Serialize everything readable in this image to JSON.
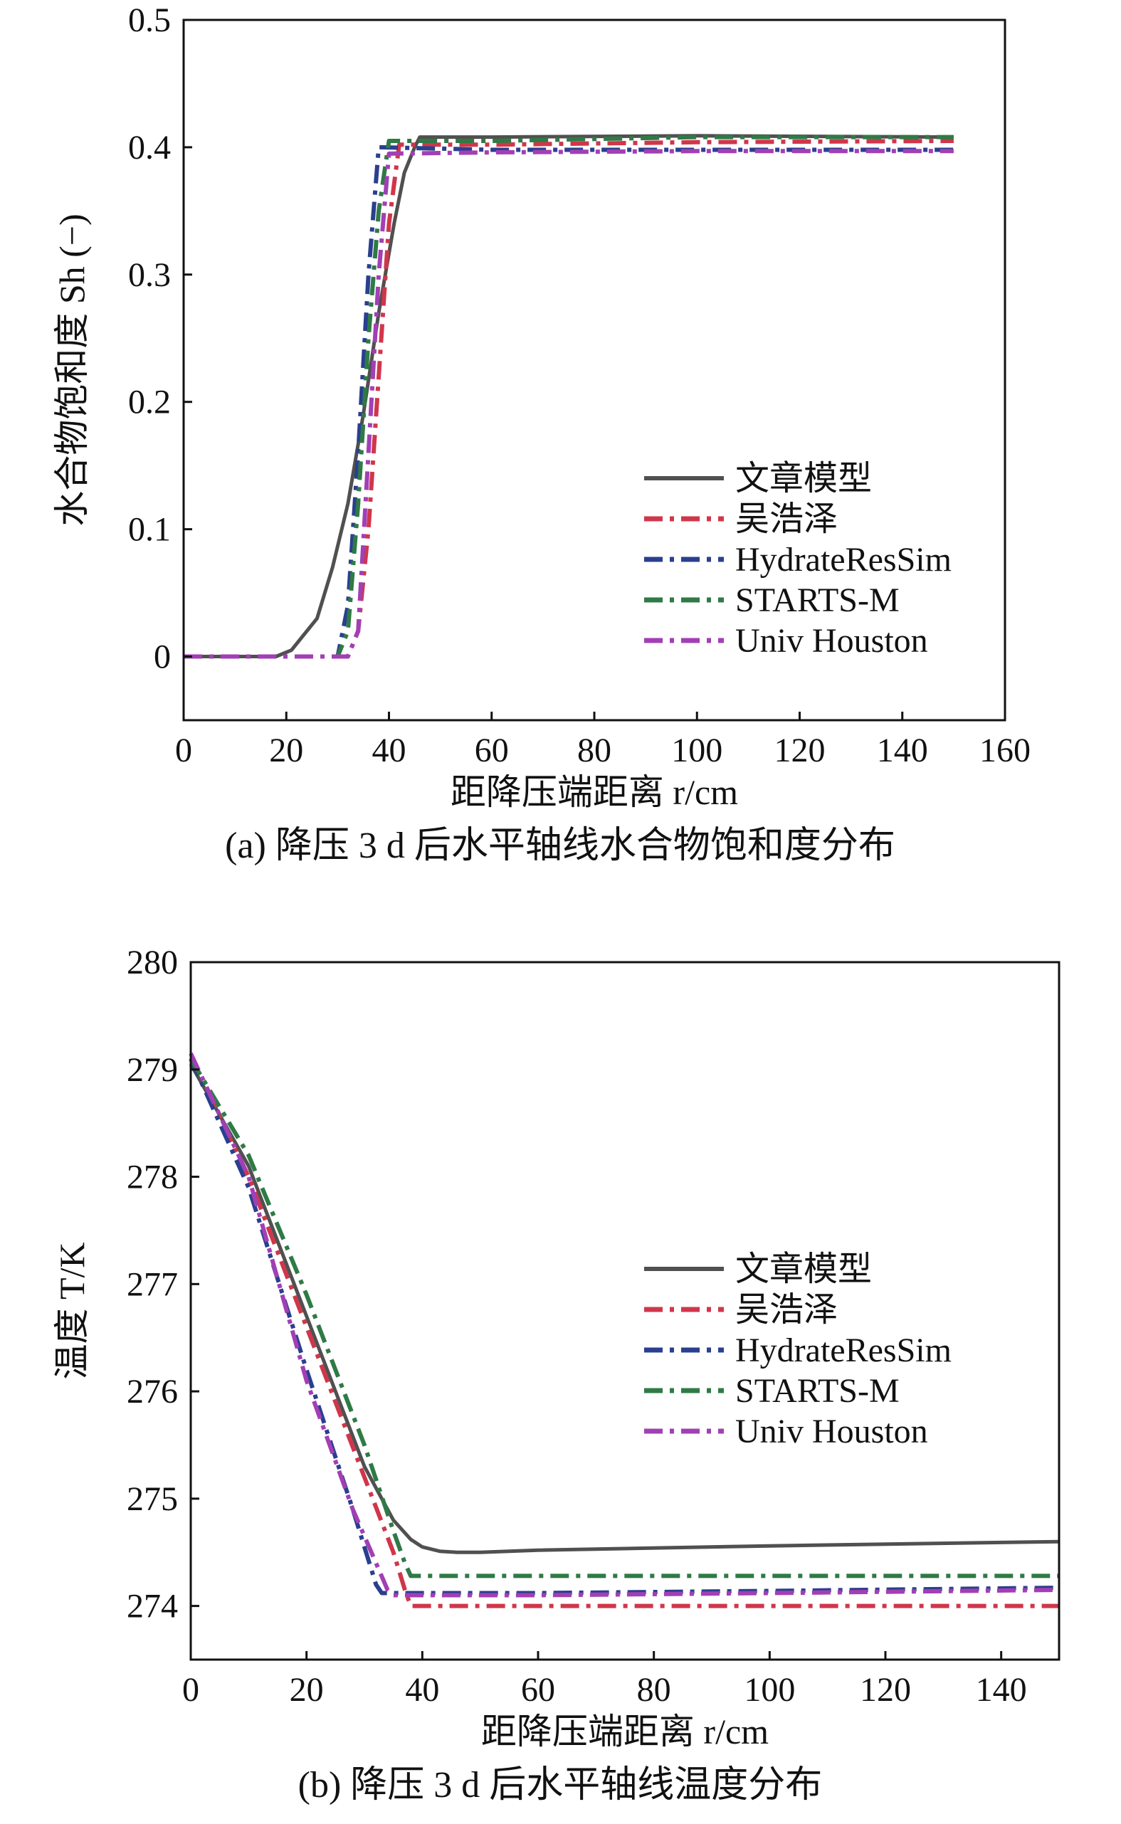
{
  "chart_data": [
    {
      "type": "line",
      "caption": "(a) 降压 3 d 后水平轴线水合物饱和度分布",
      "xlabel": "距降压端距离 r/cm",
      "ylabel": "水合物饱和度 Sh (−)",
      "xlim": [
        0,
        160
      ],
      "ylim": [
        -0.05,
        0.5
      ],
      "xticks": [
        0,
        20,
        40,
        60,
        80,
        100,
        120,
        140,
        160
      ],
      "yticks": [
        0,
        0.1,
        0.2,
        0.3,
        0.4,
        0.5
      ],
      "xtick_labels": [
        "0",
        "20",
        "40",
        "60",
        "80",
        "100",
        "120",
        "140",
        "160"
      ],
      "ytick_labels": [
        "0",
        "0.1",
        "0.2",
        "0.3",
        "0.4",
        "0.5"
      ],
      "grid": false,
      "legend_position": "lower-right",
      "series": [
        {
          "name": "文章模型",
          "color": "#505050",
          "dash": "solid",
          "x": [
            0,
            18,
            21,
            23,
            26,
            29,
            32,
            35,
            38,
            41,
            43,
            45,
            46,
            60,
            100,
            150
          ],
          "y": [
            0,
            0,
            0.005,
            0.015,
            0.03,
            0.07,
            0.12,
            0.19,
            0.27,
            0.34,
            0.38,
            0.4,
            0.408,
            0.408,
            0.409,
            0.408
          ]
        },
        {
          "name": "吴浩泽",
          "color": "#d0364a",
          "dash": "dashdot",
          "x": [
            0,
            32,
            34,
            36,
            38,
            40,
            42,
            60,
            100,
            150
          ],
          "y": [
            0,
            0,
            0.02,
            0.1,
            0.22,
            0.34,
            0.402,
            0.402,
            0.404,
            0.405
          ]
        },
        {
          "name": "HydrateResSim",
          "color": "#2a3f8f",
          "dash": "dashdot",
          "x": [
            0,
            30,
            32,
            34,
            36,
            38,
            60,
            100,
            150
          ],
          "y": [
            0,
            0,
            0.04,
            0.16,
            0.3,
            0.4,
            0.398,
            0.398,
            0.398
          ]
        },
        {
          "name": "STARTS-M",
          "color": "#2f7a45",
          "dash": "dashdot",
          "x": [
            0,
            30,
            32,
            34,
            36,
            38,
            40,
            60,
            100,
            150
          ],
          "y": [
            0,
            0,
            0.02,
            0.12,
            0.25,
            0.35,
            0.405,
            0.405,
            0.408,
            0.408
          ]
        },
        {
          "name": "Univ Houston",
          "color": "#a23fb5",
          "dash": "dashdot",
          "x": [
            0,
            32,
            34,
            36,
            38,
            40,
            60,
            100,
            150
          ],
          "y": [
            0,
            0,
            0.02,
            0.16,
            0.3,
            0.395,
            0.396,
            0.397,
            0.397
          ]
        }
      ]
    },
    {
      "type": "line",
      "caption": "(b) 降压 3 d 后水平轴线温度分布",
      "xlabel": "距降压端距离 r/cm",
      "ylabel": "温度 T/K",
      "xlim": [
        0,
        150
      ],
      "ylim": [
        273.5,
        280
      ],
      "xticks": [
        0,
        20,
        40,
        60,
        80,
        100,
        120,
        140
      ],
      "yticks": [
        274,
        275,
        276,
        277,
        278,
        279,
        280
      ],
      "xtick_labels": [
        "0",
        "20",
        "40",
        "60",
        "80",
        "100",
        "120",
        "140"
      ],
      "ytick_labels": [
        "274",
        "275",
        "276",
        "277",
        "278",
        "279",
        "280"
      ],
      "grid": false,
      "legend_position": "right",
      "series": [
        {
          "name": "文章模型",
          "color": "#505050",
          "dash": "solid",
          "x": [
            0,
            10,
            20,
            30,
            35,
            38,
            40,
            43,
            46,
            50,
            60,
            100,
            150
          ],
          "y": [
            279.05,
            278.1,
            276.7,
            275.3,
            274.8,
            274.62,
            274.55,
            274.51,
            274.5,
            274.5,
            274.52,
            274.56,
            274.6
          ]
        },
        {
          "name": "吴浩泽",
          "color": "#d0364a",
          "dash": "dashdot",
          "x": [
            0,
            10,
            20,
            30,
            35,
            37,
            38,
            60,
            100,
            150
          ],
          "y": [
            279.1,
            278.0,
            276.6,
            275.2,
            274.5,
            274.15,
            274.0,
            274.0,
            274.0,
            274.0
          ]
        },
        {
          "name": "HydrateResSim",
          "color": "#2a3f8f",
          "dash": "dashdot",
          "x": [
            0,
            10,
            20,
            28,
            32,
            33,
            60,
            100,
            150
          ],
          "y": [
            279.1,
            277.9,
            276.2,
            274.9,
            274.2,
            274.12,
            274.12,
            274.14,
            274.17
          ]
        },
        {
          "name": "STARTS-M",
          "color": "#2f7a45",
          "dash": "dashdot",
          "x": [
            0,
            10,
            20,
            30,
            35,
            37,
            38,
            60,
            100,
            150
          ],
          "y": [
            279.1,
            278.2,
            276.9,
            275.5,
            274.7,
            274.4,
            274.28,
            274.28,
            274.28,
            274.28
          ]
        },
        {
          "name": "Univ Houston",
          "color": "#a23fb5",
          "dash": "dashdot",
          "x": [
            0,
            10,
            20,
            28,
            32,
            34,
            35,
            60,
            100,
            150
          ],
          "y": [
            279.15,
            278.0,
            276.1,
            274.9,
            274.4,
            274.15,
            274.1,
            274.1,
            274.12,
            274.15
          ]
        }
      ]
    }
  ]
}
